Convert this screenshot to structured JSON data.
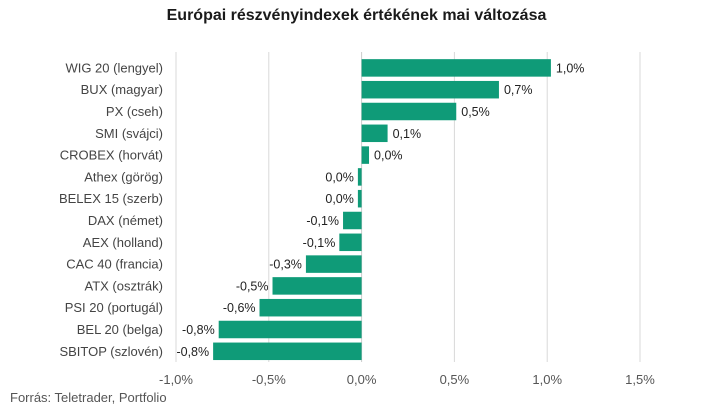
{
  "title": "Európai részvényindexek értékének mai változása",
  "source": "Forrás: Teletrader, Portfolio",
  "colors": {
    "bar": "#0f9b78",
    "grid": "#d9d9d9",
    "axis": "#cccccc"
  },
  "chart_data": {
    "type": "bar",
    "orientation": "horizontal",
    "title": "Európai részvényindexek értékének mai változása",
    "categories": [
      "WIG 20 (lengyel)",
      "BUX (magyar)",
      "PX (cseh)",
      "SMI (svájci)",
      "CROBEX (horvát)",
      "Athex (görög)",
      "BELEX 15 (szerb)",
      "DAX (német)",
      "AEX (holland)",
      "CAC 40 (francia)",
      "ATX (osztrák)",
      "PSI 20 (portugál)",
      "BEL 20 (belga)",
      "SBITOP (szlovén)"
    ],
    "values": [
      1.02,
      0.74,
      0.51,
      0.14,
      0.04,
      -0.02,
      -0.02,
      -0.1,
      -0.12,
      -0.3,
      -0.48,
      -0.55,
      -0.77,
      -0.8
    ],
    "value_labels": [
      "1,0%",
      "0,7%",
      "0,5%",
      "0,1%",
      "0,0%",
      "0,0%",
      "0,0%",
      "-0,1%",
      "-0,1%",
      "-0,3%",
      "-0,5%",
      "-0,6%",
      "-0,8%",
      "-0,8%"
    ],
    "xlim": [
      -1.0,
      1.5
    ],
    "xticks": [
      -1.0,
      -0.5,
      0.0,
      0.5,
      1.0,
      1.5
    ],
    "xtick_labels": [
      "-1,0%",
      "-0,5%",
      "0,0%",
      "0,5%",
      "1,0%",
      "1,5%"
    ],
    "grid": true,
    "legend": "none"
  }
}
